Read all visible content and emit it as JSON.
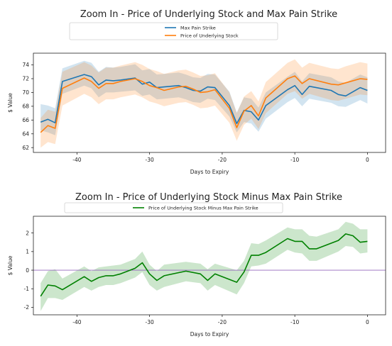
{
  "chart_data": [
    {
      "type": "line",
      "title": "Zoom In - Price of Underlying Stock and Max Pain Strike",
      "xlabel": "Days to Expiry",
      "ylabel": "$ Value",
      "xlim": [
        -46,
        2.5
      ],
      "ylim": [
        61.3,
        75.7
      ],
      "xticks": [
        -40,
        -30,
        -20,
        -10,
        0
      ],
      "yticks": [
        62,
        64,
        66,
        68,
        70,
        72,
        74
      ],
      "legend": "top-center",
      "grid": false,
      "x": [
        -45,
        -44,
        -43,
        -42,
        -39,
        -38,
        -37,
        -36,
        -35,
        -34,
        -32,
        -31,
        -30,
        -29,
        -28,
        -26,
        -25,
        -24,
        -23,
        -22,
        -21,
        -19,
        -18,
        -17,
        -16,
        -15,
        -14,
        -11,
        -10,
        -9,
        -8,
        -5,
        -4,
        -3,
        -1,
        0
      ],
      "series": [
        {
          "name": "Max Pain Strike",
          "color": "#1f77b4",
          "values": [
            65.7,
            66.1,
            65.6,
            71.6,
            72.6,
            72.3,
            71.1,
            71.8,
            71.7,
            71.8,
            72.1,
            71.2,
            71.5,
            70.7,
            70.8,
            71.0,
            70.7,
            70.3,
            70.2,
            70.8,
            70.7,
            68.1,
            65.5,
            67.4,
            67.2,
            66.0,
            68.1,
            70.4,
            71.0,
            69.7,
            70.9,
            70.3,
            69.7,
            69.5,
            70.7,
            70.3
          ],
          "lower": [
            64.5,
            64.2,
            63.8,
            69.8,
            71.0,
            70.6,
            69.3,
            70.0,
            70.0,
            70.1,
            70.3,
            69.5,
            69.7,
            69.0,
            69.1,
            69.3,
            69.0,
            68.6,
            68.5,
            69.1,
            68.9,
            66.5,
            64.2,
            65.7,
            65.5,
            64.3,
            66.2,
            68.6,
            69.2,
            68.0,
            69.1,
            68.5,
            68.0,
            67.9,
            68.9,
            68.4
          ],
          "upper": [
            68.3,
            68.1,
            67.7,
            73.5,
            74.6,
            74.3,
            73.0,
            73.7,
            73.6,
            73.7,
            74.1,
            73.2,
            73.4,
            72.6,
            72.7,
            72.9,
            72.6,
            72.2,
            72.1,
            72.7,
            72.6,
            70.1,
            67.1,
            69.3,
            69.1,
            67.8,
            70.0,
            72.3,
            73.0,
            71.6,
            72.8,
            72.2,
            71.6,
            71.4,
            72.6,
            72.2
          ]
        },
        {
          "name": "Price of Underlying Stock",
          "color": "#ff7f0e",
          "values": [
            64.2,
            65.2,
            64.8,
            70.6,
            72.1,
            71.6,
            70.6,
            71.3,
            71.3,
            71.6,
            72.0,
            71.6,
            71.0,
            70.7,
            70.3,
            70.8,
            70.9,
            70.5,
            70.0,
            70.1,
            70.4,
            67.7,
            64.9,
            67.3,
            68.1,
            66.6,
            69.2,
            72.0,
            72.4,
            71.3,
            72.0,
            71.2,
            71.1,
            71.4,
            72.0,
            71.9
          ],
          "lower": [
            62.0,
            62.8,
            62.5,
            68.1,
            69.8,
            69.3,
            68.3,
            69.0,
            69.0,
            69.3,
            69.7,
            69.3,
            68.7,
            68.4,
            68.0,
            68.5,
            68.6,
            68.2,
            67.7,
            67.8,
            68.1,
            65.6,
            63.0,
            65.3,
            66.2,
            64.7,
            67.0,
            69.8,
            70.2,
            69.1,
            69.8,
            68.9,
            68.8,
            69.1,
            69.7,
            69.6
          ],
          "upper": [
            66.3,
            67.5,
            67.2,
            73.0,
            74.4,
            73.9,
            72.9,
            73.6,
            73.6,
            73.9,
            74.4,
            74.0,
            73.4,
            73.1,
            72.7,
            73.2,
            73.3,
            72.9,
            72.4,
            72.5,
            72.8,
            70.0,
            67.0,
            69.4,
            70.2,
            68.7,
            71.5,
            74.3,
            74.8,
            73.6,
            74.3,
            73.5,
            73.4,
            73.8,
            74.4,
            74.2
          ]
        }
      ]
    },
    {
      "type": "line",
      "title": "Zoom In - Price of Underlying Stock Minus Max Pain Strike",
      "xlabel": "Days to Expiry",
      "ylabel": "$ Value",
      "xlim": [
        -46,
        2.5
      ],
      "ylim": [
        -2.4,
        2.9
      ],
      "xticks": [
        -40,
        -30,
        -20,
        -10,
        0
      ],
      "yticks": [
        -2,
        -1,
        0,
        1,
        2
      ],
      "hline": {
        "y": 0,
        "color": "#9467bd"
      },
      "legend": "top-center",
      "grid": false,
      "x": [
        -45,
        -44,
        -43,
        -42,
        -39,
        -38,
        -37,
        -36,
        -35,
        -34,
        -32,
        -31,
        -30,
        -29,
        -28,
        -25,
        -23,
        -22,
        -21,
        -18,
        -17,
        -16,
        -15,
        -14,
        -11,
        -10,
        -9,
        -8,
        -7,
        -4,
        -3,
        -2,
        -1,
        0
      ],
      "series": [
        {
          "name": "Price of Underlying Stock Minus Max Pain Strike",
          "color": "#008000",
          "values": [
            -1.4,
            -0.8,
            -0.85,
            -1.05,
            -0.35,
            -0.6,
            -0.4,
            -0.3,
            -0.3,
            -0.2,
            0.1,
            0.4,
            -0.2,
            -0.55,
            -0.3,
            -0.05,
            -0.2,
            -0.55,
            -0.2,
            -0.65,
            -0.1,
            0.8,
            0.8,
            0.95,
            1.7,
            1.55,
            1.55,
            1.15,
            1.15,
            1.6,
            1.95,
            1.85,
            1.5,
            1.55
          ],
          "lower": [
            -2.2,
            -1.5,
            -1.5,
            -1.6,
            -0.9,
            -1.1,
            -0.9,
            -0.8,
            -0.8,
            -0.7,
            -0.4,
            -0.1,
            -0.8,
            -1.1,
            -0.9,
            -0.6,
            -0.7,
            -1.1,
            -0.8,
            -1.3,
            -0.7,
            0.2,
            0.25,
            0.35,
            1.1,
            0.95,
            0.9,
            0.5,
            0.5,
            1.0,
            1.3,
            1.25,
            0.9,
            0.95
          ],
          "upper": [
            -0.7,
            -0.05,
            0.05,
            -0.45,
            0.2,
            -0.05,
            0.15,
            0.2,
            0.25,
            0.3,
            0.6,
            1.0,
            0.3,
            -0.05,
            0.3,
            0.45,
            0.35,
            0.05,
            0.35,
            0.0,
            0.5,
            1.45,
            1.4,
            1.6,
            2.3,
            2.2,
            2.2,
            1.85,
            1.8,
            2.2,
            2.6,
            2.5,
            2.2,
            2.2
          ]
        }
      ]
    }
  ]
}
